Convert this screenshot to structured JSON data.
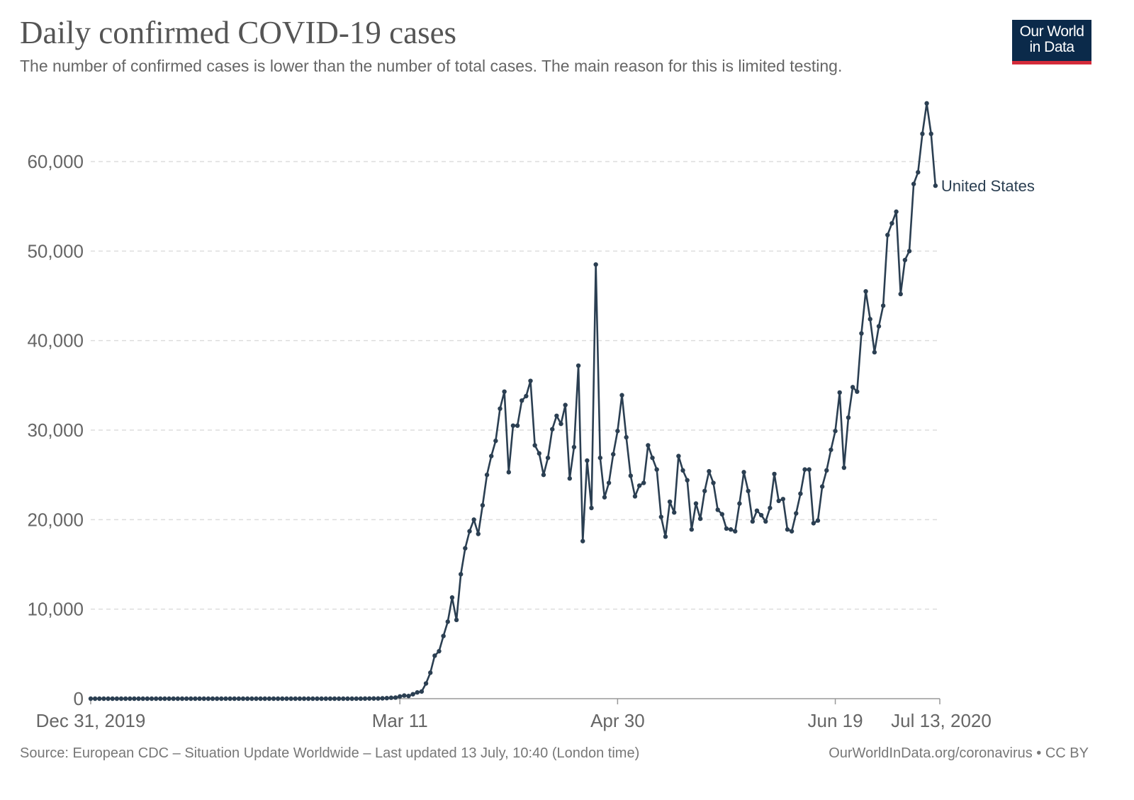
{
  "header": {
    "title": "Daily confirmed COVID-19 cases",
    "subtitle": "The number of confirmed cases is lower than the number of total cases. The main reason for this is limited testing."
  },
  "logo": {
    "line1": "Our World",
    "line2": "in Data",
    "bg_color": "#0b2a4a",
    "accent_color": "#d42b3a"
  },
  "footer": {
    "source": "Source: European CDC – Situation Update Worldwide – Last updated 13 July, 10:40 (London time)",
    "license": "OurWorldInData.org/coronavirus • CC BY"
  },
  "chart_data": {
    "type": "line",
    "title": "Daily confirmed COVID-19 cases",
    "xlabel": "",
    "ylabel": "",
    "x_start": "2019-12-31",
    "x_end": "2020-07-13",
    "ylim": [
      0,
      60000
    ],
    "yticks": [
      0,
      10000,
      20000,
      30000,
      40000,
      50000,
      60000
    ],
    "ytick_labels": [
      "0",
      "10,000",
      "20,000",
      "30,000",
      "40,000",
      "50,000",
      "60,000"
    ],
    "xticks": [
      "2019-12-31",
      "2020-03-11",
      "2020-04-30",
      "2020-06-19",
      "2020-07-13"
    ],
    "xtick_labels": [
      "Dec 31, 2019",
      "Mar 11",
      "Apr 30",
      "Jun 19",
      "Jul 13, 2020"
    ],
    "grid": "horizontal-dashed",
    "line_color": "#2b3f52",
    "series": [
      {
        "name": "United States",
        "start_date": "2019-12-31",
        "values": [
          0,
          0,
          0,
          0,
          0,
          0,
          0,
          0,
          0,
          0,
          0,
          0,
          0,
          0,
          0,
          0,
          0,
          0,
          0,
          0,
          0,
          0,
          1,
          0,
          0,
          1,
          0,
          0,
          0,
          0,
          0,
          1,
          0,
          0,
          1,
          0,
          0,
          0,
          0,
          0,
          0,
          0,
          0,
          0,
          0,
          0,
          0,
          0,
          0,
          0,
          0,
          0,
          0,
          0,
          0,
          0,
          0,
          0,
          0,
          0,
          0,
          3,
          2,
          10,
          18,
          20,
          22,
          40,
          60,
          100,
          120,
          250,
          350,
          300,
          500,
          700,
          800,
          1700,
          2900,
          4800,
          5300,
          7000,
          8600,
          11300,
          8800,
          13900,
          16800,
          18700,
          20000,
          18400,
          21600,
          25000,
          27100,
          28800,
          32400,
          34300,
          25300,
          30500,
          30500,
          33300,
          33800,
          35500,
          28300,
          27400,
          25000,
          26900,
          30100,
          31600,
          30700,
          32800,
          24600,
          28100,
          37200,
          17600,
          26600,
          21300,
          48500,
          26900,
          22500,
          24100,
          27300,
          29900,
          33900,
          29200,
          24900,
          22600,
          23800,
          24100,
          28300,
          26900,
          25600,
          20300,
          18100,
          22000,
          20800,
          27100,
          25500,
          24400,
          18900,
          21800,
          20100,
          23200,
          25400,
          24100,
          21100,
          20600,
          19000,
          18900,
          18700,
          21800,
          25300,
          23200,
          19800,
          21000,
          20500,
          19800,
          21300,
          25100,
          22100,
          22300,
          18900,
          18700,
          20700,
          22900,
          25600,
          25600,
          19600,
          19900,
          23700,
          25500,
          27800,
          29900,
          34200,
          25800,
          31400,
          34800,
          34300,
          40800,
          45500,
          42400,
          38700,
          41600,
          43900,
          51800,
          53100,
          54400,
          45200,
          49000,
          50000,
          57500,
          58800,
          63100,
          66500,
          63100,
          57300
        ]
      }
    ]
  }
}
